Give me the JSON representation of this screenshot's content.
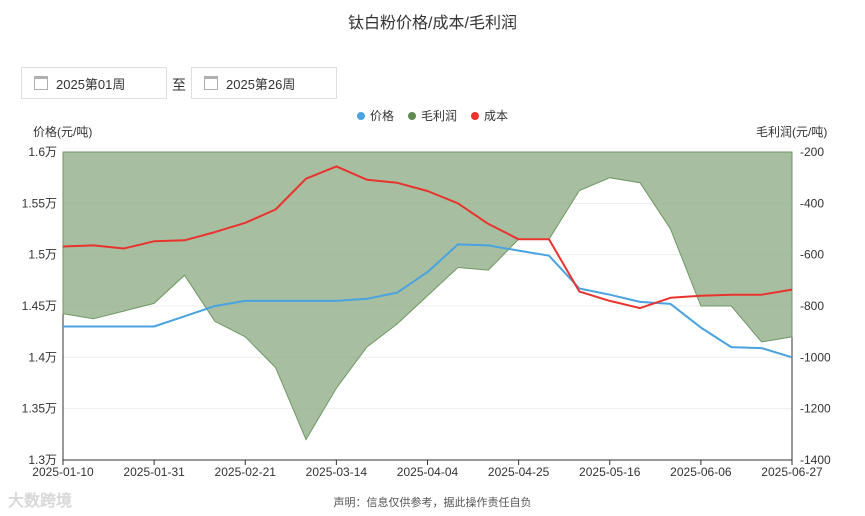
{
  "title": "钛白粉价格/成本/毛利润",
  "date_range": {
    "start": "2025第01周",
    "separator": "至",
    "end": "2025第26周"
  },
  "legend": [
    {
      "name": "价格",
      "color": "#4aa3df"
    },
    {
      "name": "毛利润",
      "color": "#5f8a53"
    },
    {
      "name": "成本",
      "color": "#e8332e"
    }
  ],
  "footer": "声明：信息仅供参考，据此操作责任自负",
  "logo_text": "大数跨境",
  "chart_data": {
    "type": "line",
    "x_ticks": [
      "2025-01-10",
      "2025-01-31",
      "2025-02-21",
      "2025-03-14",
      "2025-04-04",
      "2025-04-25",
      "2025-05-16",
      "2025-06-06",
      "2025-06-27"
    ],
    "y_left": {
      "label": "价格(元/吨)",
      "ticks": [
        "1.3万",
        "1.35万",
        "1.4万",
        "1.45万",
        "1.5万",
        "1.55万",
        "1.6万"
      ],
      "min": 13000,
      "max": 16000
    },
    "y_right": {
      "label": "毛利润(元/吨)",
      "ticks": [
        "-1400",
        "-1200",
        "-1000",
        "-800",
        "-600",
        "-400",
        "-200"
      ],
      "min": -1400,
      "max": -200
    },
    "x": [
      "2025-01-10",
      "2025-01-17",
      "2025-01-24",
      "2025-01-31",
      "2025-02-07",
      "2025-02-14",
      "2025-02-21",
      "2025-02-28",
      "2025-03-07",
      "2025-03-14",
      "2025-03-21",
      "2025-03-28",
      "2025-04-04",
      "2025-04-11",
      "2025-04-18",
      "2025-04-25",
      "2025-05-02",
      "2025-05-09",
      "2025-05-16",
      "2025-05-23",
      "2025-05-30",
      "2025-06-06",
      "2025-06-13",
      "2025-06-20",
      "2025-06-27"
    ],
    "series": [
      {
        "name": "价格",
        "axis": "left",
        "values": [
          14300,
          14300,
          14300,
          14300,
          14400,
          14500,
          14550,
          14550,
          14550,
          14550,
          14570,
          14630,
          14830,
          15100,
          15090,
          15040,
          14990,
          14670,
          14610,
          14540,
          14520,
          14290,
          14100,
          14090,
          14000
        ]
      },
      {
        "name": "成本",
        "axis": "left",
        "values": [
          15080,
          15090,
          15060,
          15130,
          15140,
          15220,
          15310,
          15440,
          15740,
          15860,
          15730,
          15700,
          15620,
          15500,
          15300,
          15150,
          15150,
          14640,
          14550,
          14480,
          14580,
          14600,
          14610,
          14610,
          14660
        ]
      },
      {
        "name": "毛利润",
        "axis": "right",
        "values": [
          -830,
          -850,
          -820,
          -790,
          -680,
          -860,
          -920,
          -1040,
          -1320,
          -1120,
          -960,
          -870,
          -760,
          -650,
          -660,
          -540,
          -540,
          -350,
          -300,
          -320,
          -500,
          -800,
          -800,
          -940,
          -920
        ]
      }
    ]
  }
}
